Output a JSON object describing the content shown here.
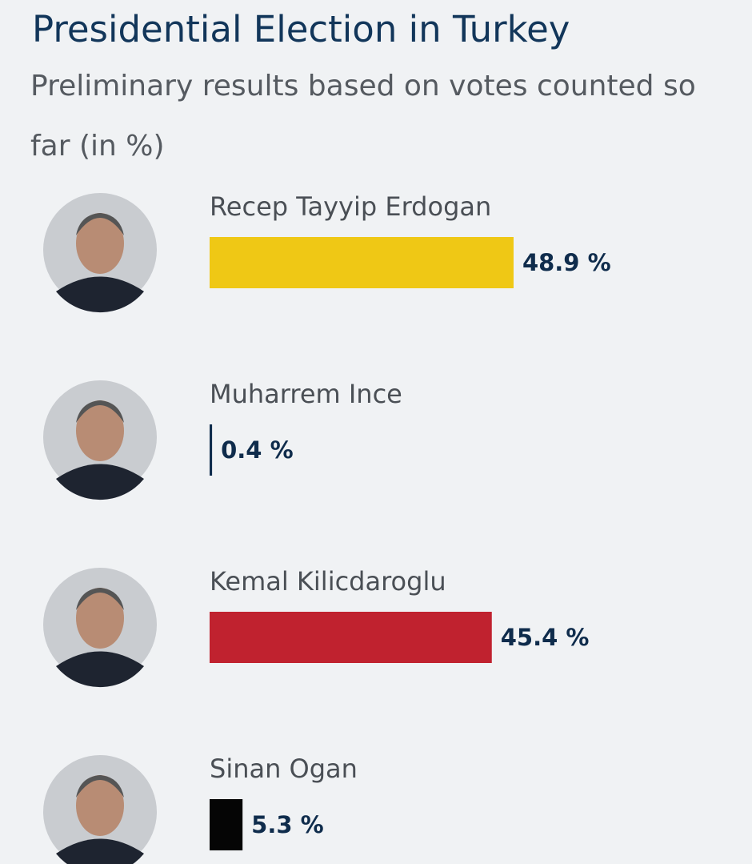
{
  "chart_data": {
    "type": "bar",
    "orientation": "horizontal",
    "title": "Presidential Election in Turkey",
    "subtitle": "Preliminary results based on votes counted so far (in %)",
    "categories": [
      "Recep Tayyip Erdogan",
      "Muharrem Ince",
      "Kemal Kilicdaroglu",
      "Sinan Ogan"
    ],
    "values": [
      48.9,
      0.4,
      45.4,
      5.3
    ],
    "value_labels": [
      "48.9 %",
      "0.4 %",
      "45.4 %",
      "5.3 %"
    ],
    "colors": [
      "#efc815",
      "#0f2c4c",
      "#c0222f",
      "#050505"
    ]
  }
}
